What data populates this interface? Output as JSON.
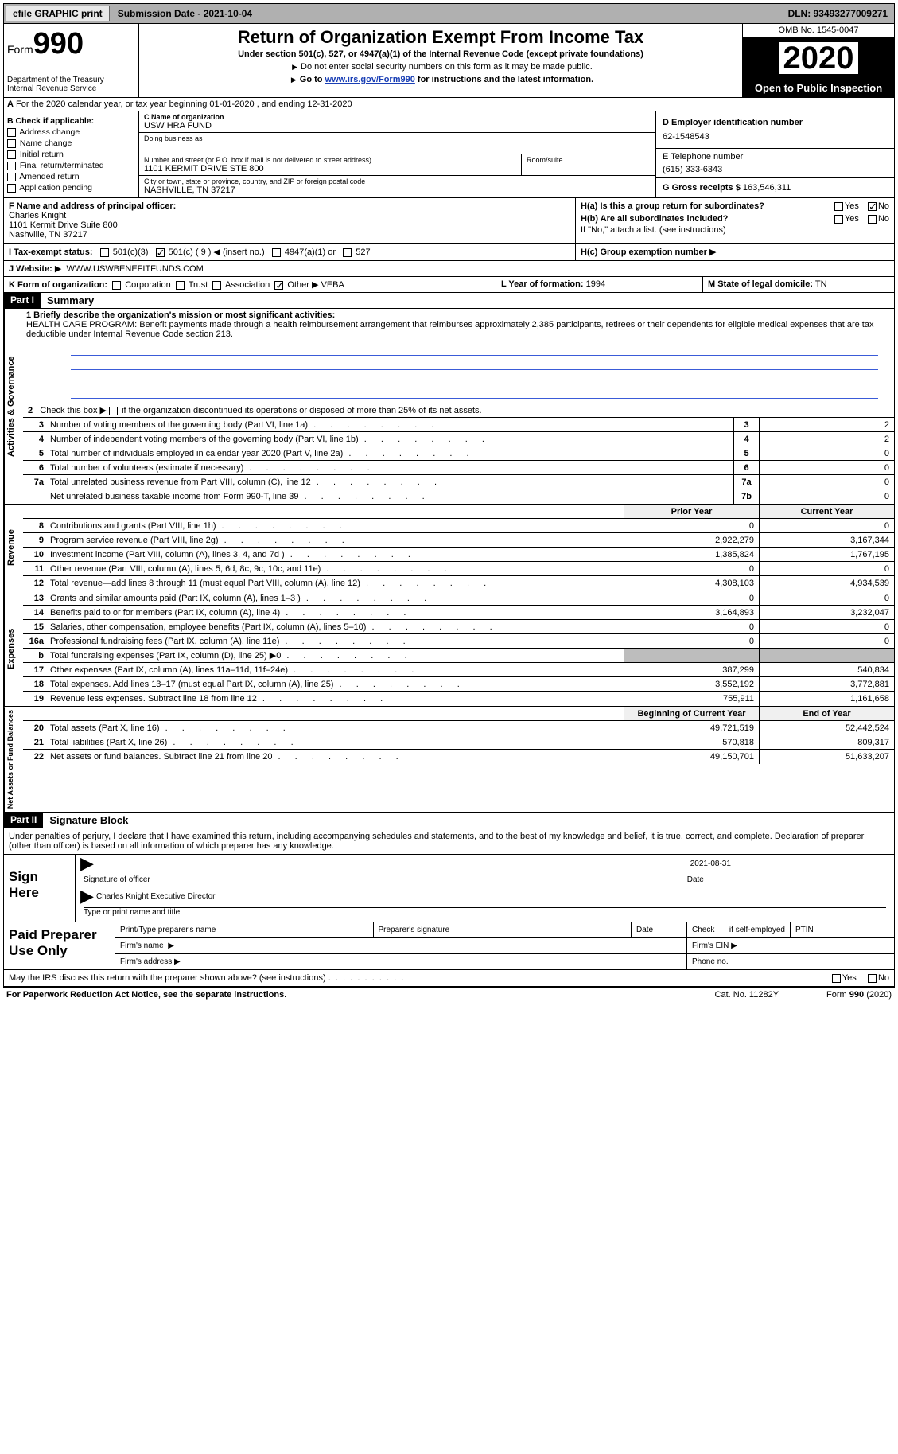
{
  "topbar": {
    "efile": "efile GRAPHIC print",
    "submission": "Submission Date - 2021-10-04",
    "dln": "DLN: 93493277009271"
  },
  "header": {
    "form_word": "Form",
    "form_num": "990",
    "title": "Return of Organization Exempt From Income Tax",
    "sub1": "Under section 501(c), 527, or 4947(a)(1) of the Internal Revenue Code (except private foundations)",
    "sub2": "Do not enter social security numbers on this form as it may be made public.",
    "sub3a": "Go to ",
    "sub3_link": "www.irs.gov/Form990",
    "sub3b": " for instructions and the latest information.",
    "dept": "Department of the Treasury\nInternal Revenue Service",
    "omb": "OMB No. 1545-0047",
    "year": "2020",
    "inspection": "Open to Public Inspection"
  },
  "rowA": {
    "label": "A",
    "text": "For the 2020 calendar year, or tax year beginning 01-01-2020    , and ending 12-31-2020"
  },
  "B": {
    "label": "B Check if applicable:",
    "items": [
      "Address change",
      "Name change",
      "Initial return",
      "Final return/terminated",
      "Amended return",
      "Application pending"
    ],
    "pending": "pending"
  },
  "C": {
    "name_lbl": "C Name of organization",
    "name_val": "USW HRA FUND",
    "dba_lbl": "Doing business as",
    "addr_lbl": "Number and street (or P.O. box if mail is not delivered to street address)",
    "addr_val": "1101 KERMIT DRIVE STE 800",
    "room_lbl": "Room/suite",
    "city_lbl": "City or town, state or province, country, and ZIP or foreign postal code",
    "city_val": "NASHVILLE, TN  37217"
  },
  "D": {
    "lbl": "D Employer identification number",
    "val": "62-1548543"
  },
  "E": {
    "lbl": "E Telephone number",
    "val": "(615) 333-6343"
  },
  "G": {
    "lbl": "G Gross receipts $",
    "val": "163,546,311"
  },
  "F": {
    "lbl": "F  Name and address of principal officer:",
    "name": "Charles Knight",
    "addr1": "1101 Kermit Drive Suite 800",
    "addr2": "Nashville, TN  37217"
  },
  "H": {
    "a": "H(a)  Is this a group return for subordinates?",
    "b": "H(b)  Are all subordinates included?",
    "b_note": "If \"No,\" attach a list. (see instructions)",
    "c_lbl": "H(c)  Group exemption number",
    "yes": "Yes",
    "no": "No"
  },
  "I": {
    "lbl": "I    Tax-exempt status:",
    "opts": [
      "501(c)(3)",
      "501(c) ( 9 )",
      "(insert no.)",
      "4947(a)(1) or",
      "527"
    ]
  },
  "J": {
    "lbl": "J    Website:",
    "val": "WWW.USWBENEFITFUNDS.COM"
  },
  "K": {
    "lbl": "K Form of organization:",
    "opts": [
      "Corporation",
      "Trust",
      "Association",
      "Other"
    ],
    "other_val": "VEBA"
  },
  "L": {
    "lbl": "L Year of formation:",
    "val": "1994"
  },
  "M": {
    "lbl": "M State of legal domicile:",
    "val": "TN"
  },
  "partI": {
    "tag": "Part I",
    "title": "Summary"
  },
  "mission": {
    "lbl": "1   Briefly describe the organization's mission or most significant activities:",
    "text": "HEALTH CARE PROGRAM: Benefit payments made through a health reimbursement arrangement that reimburses approximately 2,385 participants, retirees or their dependents for eligible medical expenses that are tax deductible under Internal Revenue Code section 213."
  },
  "line2": "2     Check this box ▶        if the organization discontinued its operations or disposed of more than 25% of its net assets.",
  "gov_lines": [
    {
      "n": "3",
      "d": "Number of voting members of the governing body (Part VI, line 1a)",
      "box": "3",
      "v": "2"
    },
    {
      "n": "4",
      "d": "Number of independent voting members of the governing body (Part VI, line 1b)",
      "box": "4",
      "v": "2"
    },
    {
      "n": "5",
      "d": "Total number of individuals employed in calendar year 2020 (Part V, line 2a)",
      "box": "5",
      "v": "0"
    },
    {
      "n": "6",
      "d": "Total number of volunteers (estimate if necessary)",
      "box": "6",
      "v": "0"
    },
    {
      "n": "7a",
      "d": "Total unrelated business revenue from Part VIII, column (C), line 12",
      "box": "7a",
      "v": "0"
    },
    {
      "n": "",
      "d": "Net unrelated business taxable income from Form 990-T, line 39",
      "box": "7b",
      "v": "0"
    }
  ],
  "col_hdr": {
    "prior": "Prior Year",
    "curr": "Current Year"
  },
  "rev_label": "Revenue",
  "rev": [
    {
      "n": "8",
      "d": "Contributions and grants (Part VIII, line 1h)",
      "p": "0",
      "c": "0"
    },
    {
      "n": "9",
      "d": "Program service revenue (Part VIII, line 2g)",
      "p": "2,922,279",
      "c": "3,167,344"
    },
    {
      "n": "10",
      "d": "Investment income (Part VIII, column (A), lines 3, 4, and 7d )",
      "p": "1,385,824",
      "c": "1,767,195"
    },
    {
      "n": "11",
      "d": "Other revenue (Part VIII, column (A), lines 5, 6d, 8c, 9c, 10c, and 11e)",
      "p": "0",
      "c": "0"
    },
    {
      "n": "12",
      "d": "Total revenue—add lines 8 through 11 (must equal Part VIII, column (A), line 12)",
      "p": "4,308,103",
      "c": "4,934,539"
    }
  ],
  "exp_label": "Expenses",
  "exp": [
    {
      "n": "13",
      "d": "Grants and similar amounts paid (Part IX, column (A), lines 1–3 )",
      "p": "0",
      "c": "0"
    },
    {
      "n": "14",
      "d": "Benefits paid to or for members (Part IX, column (A), line 4)",
      "p": "3,164,893",
      "c": "3,232,047"
    },
    {
      "n": "15",
      "d": "Salaries, other compensation, employee benefits (Part IX, column (A), lines 5–10)",
      "p": "0",
      "c": "0"
    },
    {
      "n": "16a",
      "d": "Professional fundraising fees (Part IX, column (A), line 11e)",
      "p": "0",
      "c": "0"
    },
    {
      "n": "b",
      "d": "Total fundraising expenses (Part IX, column (D), line 25) ▶0",
      "p": "",
      "c": "",
      "gray": true
    },
    {
      "n": "17",
      "d": "Other expenses (Part IX, column (A), lines 11a–11d, 11f–24e)",
      "p": "387,299",
      "c": "540,834"
    },
    {
      "n": "18",
      "d": "Total expenses. Add lines 13–17 (must equal Part IX, column (A), line 25)",
      "p": "3,552,192",
      "c": "3,772,881"
    },
    {
      "n": "19",
      "d": "Revenue less expenses. Subtract line 18 from line 12",
      "p": "755,911",
      "c": "1,161,658"
    }
  ],
  "na_label": "Net Assets or Fund Balances",
  "na_hdr": {
    "prior": "Beginning of Current Year",
    "curr": "End of Year"
  },
  "na": [
    {
      "n": "20",
      "d": "Total assets (Part X, line 16)",
      "p": "49,721,519",
      "c": "52,442,524"
    },
    {
      "n": "21",
      "d": "Total liabilities (Part X, line 26)",
      "p": "570,818",
      "c": "809,317"
    },
    {
      "n": "22",
      "d": "Net assets or fund balances. Subtract line 21 from line 20",
      "p": "49,150,701",
      "c": "51,633,207"
    }
  ],
  "partII": {
    "tag": "Part II",
    "title": "Signature Block"
  },
  "sig_text": "Under penalties of perjury, I declare that I have examined this return, including accompanying schedules and statements, and to the best of my knowledge and belief, it is true, correct, and complete. Declaration of preparer (other than officer) is based on all information of which preparer has any knowledge.",
  "sign": {
    "here": "Sign Here",
    "officer_lbl": "Signature of officer",
    "date_lbl": "Date",
    "date_val": "2021-08-31",
    "name": "Charles Knight  Executive Director",
    "name_lbl": "Type or print name and title"
  },
  "pp": {
    "title": "Paid Preparer Use Only",
    "h1": "Print/Type preparer's name",
    "h2": "Preparer's signature",
    "h3": "Date",
    "h4a": "Check",
    "h4b": "if self-employed",
    "h5": "PTIN",
    "firm_name": "Firm's name",
    "firm_ein": "Firm's EIN",
    "firm_addr": "Firm's address",
    "phone": "Phone no."
  },
  "may_irs": "May the IRS discuss this return with the preparer shown above? (see instructions)",
  "footer": {
    "left": "For Paperwork Reduction Act Notice, see the separate instructions.",
    "mid": "Cat. No. 11282Y",
    "right": "Form 990 (2020)"
  },
  "gov_label": "Activities & Governance"
}
